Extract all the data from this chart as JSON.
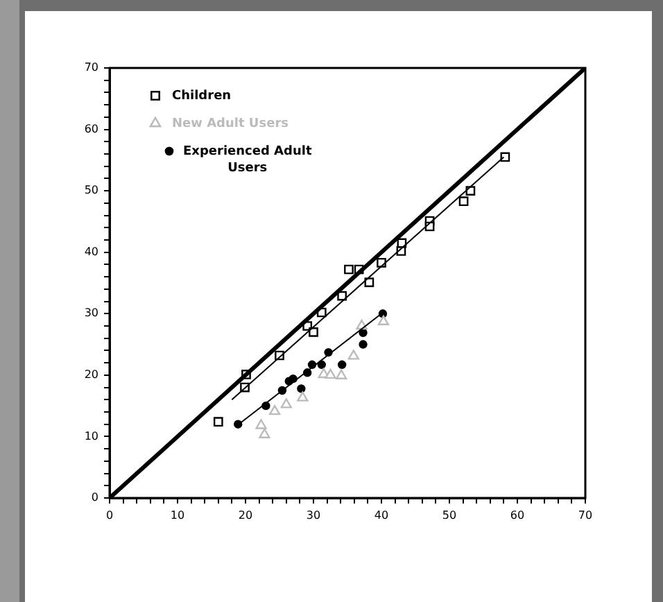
{
  "chart_data": {
    "type": "scatter",
    "xlim": [
      0,
      70
    ],
    "ylim": [
      0,
      70
    ],
    "xticks": [
      0,
      {
        "value": 2,
        "label": null
      },
      {
        "value": 4,
        "label": null
      },
      {
        "value": 6,
        "label": null
      },
      {
        "value": 8,
        "label": null
      },
      10,
      {
        "value": 12,
        "label": null
      },
      {
        "value": 14,
        "label": null
      },
      {
        "value": 16,
        "label": null
      },
      {
        "value": 18,
        "label": null
      },
      20,
      {
        "value": 22,
        "label": null
      },
      {
        "value": 24,
        "label": null
      },
      {
        "value": 26,
        "label": null
      },
      {
        "value": 28,
        "label": null
      },
      30,
      {
        "value": 32,
        "label": null
      },
      {
        "value": 34,
        "label": null
      },
      {
        "value": 36,
        "label": null
      },
      {
        "value": 38,
        "label": null
      },
      40,
      {
        "value": 42,
        "label": null
      },
      {
        "value": 44,
        "label": null
      },
      {
        "value": 46,
        "label": null
      },
      {
        "value": 48,
        "label": null
      },
      50,
      {
        "value": 52,
        "label": null
      },
      {
        "value": 54,
        "label": null
      },
      {
        "value": 56,
        "label": null
      },
      {
        "value": 58,
        "label": null
      },
      60,
      {
        "value": 62,
        "label": null
      },
      {
        "value": 64,
        "label": null
      },
      {
        "value": 66,
        "label": null
      },
      {
        "value": 68,
        "label": null
      },
      70
    ],
    "yticks": [
      0,
      {
        "value": 2,
        "label": null
      },
      {
        "value": 4,
        "label": null
      },
      {
        "value": 6,
        "label": null
      },
      {
        "value": 8,
        "label": null
      },
      10,
      {
        "value": 12,
        "label": null
      },
      {
        "value": 14,
        "label": null
      },
      {
        "value": 16,
        "label": null
      },
      {
        "value": 18,
        "label": null
      },
      20,
      {
        "value": 22,
        "label": null
      },
      {
        "value": 24,
        "label": null
      },
      {
        "value": 26,
        "label": null
      },
      {
        "value": 28,
        "label": null
      },
      30,
      {
        "value": 32,
        "label": null
      },
      {
        "value": 34,
        "label": null
      },
      {
        "value": 36,
        "label": null
      },
      {
        "value": 38,
        "label": null
      },
      40,
      {
        "value": 42,
        "label": null
      },
      {
        "value": 44,
        "label": null
      },
      {
        "value": 46,
        "label": null
      },
      {
        "value": 48,
        "label": null
      },
      50,
      {
        "value": 52,
        "label": null
      },
      {
        "value": 54,
        "label": null
      },
      {
        "value": 56,
        "label": null
      },
      {
        "value": 58,
        "label": null
      },
      60,
      {
        "value": 62,
        "label": null
      },
      {
        "value": 64,
        "label": null
      },
      {
        "value": 66,
        "label": null
      },
      {
        "value": 68,
        "label": null
      },
      70
    ],
    "grid": false,
    "legend": "top left",
    "series": [
      {
        "type": "line",
        "color": "#000000",
        "marker": "none",
        "x": [
          0,
          70
        ],
        "values": [
          0,
          70
        ]
      },
      {
        "type": "line",
        "color": "#000000",
        "marker": "none",
        "x": [
          18,
          58
        ],
        "values": [
          16,
          55.5
        ]
      },
      {
        "type": "line",
        "color": "#000000",
        "marker": "none",
        "x": [
          19,
          40
        ],
        "values": [
          12,
          30
        ]
      },
      {
        "name": "Children",
        "type": "scatter",
        "color": "#000000",
        "marker": "square",
        "x": [
          16,
          19.9,
          20.1,
          25,
          29.1,
          30,
          31.2,
          34.2,
          35.2,
          36.7,
          38.2,
          40,
          42.9,
          43,
          47.1,
          47.1,
          52.1,
          53.1,
          58.2
        ],
        "values": [
          12.4,
          18,
          20.1,
          23.2,
          28,
          27,
          30.2,
          32.9,
          37.2,
          37.2,
          35.1,
          38.3,
          40.2,
          41.5,
          45.1,
          44.2,
          48.3,
          50,
          55.5
        ]
      },
      {
        "name": "New Adult Users",
        "type": "scatter",
        "color": "#bbbbbb",
        "marker": "triangle",
        "x": [
          22.3,
          22.8,
          24.3,
          26,
          28.4,
          31.5,
          32.5,
          34.1,
          35.9,
          37.1,
          40.3
        ],
        "values": [
          11.8,
          10.3,
          14.1,
          15.2,
          16.3,
          20.1,
          20,
          19.9,
          23.1,
          28,
          28.7
        ]
      },
      {
        "name": "Experienced Adult Users",
        "type": "scatter",
        "color": "#000000",
        "marker": "circle",
        "x": [
          18.9,
          23,
          25.4,
          26.4,
          27,
          28.2,
          29.1,
          29.8,
          31.2,
          32.2,
          34.2,
          37.3,
          37.3,
          40.2
        ],
        "values": [
          12,
          15,
          17.5,
          19,
          19.4,
          17.8,
          20.4,
          21.7,
          21.7,
          23.7,
          21.7,
          26.9,
          25,
          30
        ]
      }
    ]
  }
}
